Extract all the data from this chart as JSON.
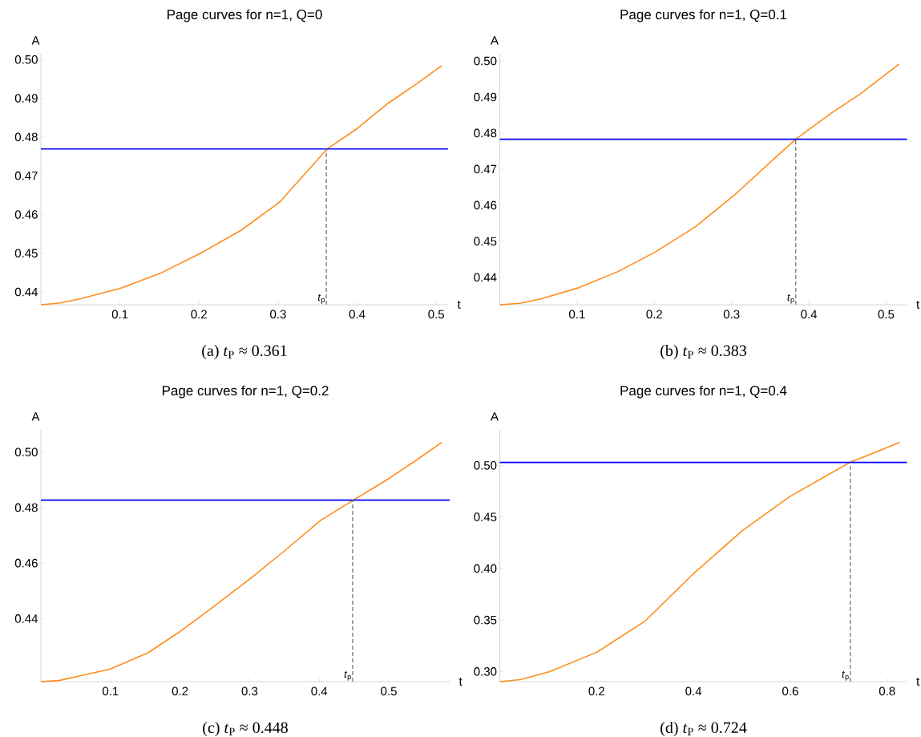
{
  "chart_data": [
    {
      "type": "line",
      "title": "Page curves for n=1, Q=0",
      "xlabel": "t",
      "ylabel": "A",
      "xlim": [
        0,
        0.515
      ],
      "ylim": [
        0.4367,
        0.5015
      ],
      "xticks": [
        0.1,
        0.2,
        0.3,
        0.4,
        0.5
      ],
      "yticks": [
        {
          "value": 0.44,
          "label": "0.44"
        },
        {
          "value": 0.45,
          "label": "0.45"
        },
        {
          "value": 0.46,
          "label": "0.46"
        },
        {
          "value": 0.47,
          "label": "0.47"
        },
        {
          "value": 0.48,
          "label": "0.48"
        },
        {
          "value": 0.49,
          "label": "0.49"
        },
        {
          "value": 0.5,
          "label": "0.50"
        }
      ],
      "x": [
        0,
        0.023,
        0.049,
        0.1,
        0.151,
        0.201,
        0.253,
        0.302,
        0.362,
        0.4,
        0.437,
        0.475,
        0.507
      ],
      "series": [
        {
          "color": "#ff8c1a",
          "values": [
            0.4367,
            0.4371,
            0.4382,
            0.4409,
            0.4448,
            0.4499,
            0.4559,
            0.4632,
            0.4769,
            0.4822,
            0.4884,
            0.4937,
            0.4984
          ]
        }
      ],
      "ref_lines": [
        {
          "axis": "y",
          "value": 0.4769,
          "color": "#0000ff"
        },
        {
          "axis": "x",
          "value": 0.361,
          "label": "*t*$_{p}$",
          "color": "#808080",
          "line_style": "dashed"
        }
      ],
      "annotations": [
        "(a) *t*$_{P}$ ≈ 0.361"
      ]
    },
    {
      "type": "line",
      "title": "Page curves for n=1, Q=0.1",
      "xlabel": "t",
      "ylabel": "A",
      "xlim": [
        0,
        0.527
      ],
      "ylim": [
        0.4324,
        0.502
      ],
      "xticks": [
        0.1,
        0.2,
        0.3,
        0.4,
        0.5
      ],
      "yticks": [
        {
          "value": 0.44,
          "label": "0.44"
        },
        {
          "value": 0.45,
          "label": "0.45"
        },
        {
          "value": 0.46,
          "label": "0.46"
        },
        {
          "value": 0.47,
          "label": "0.47"
        },
        {
          "value": 0.48,
          "label": "0.48"
        },
        {
          "value": 0.49,
          "label": "0.49"
        },
        {
          "value": 0.5,
          "label": "0.50"
        }
      ],
      "x": [
        0,
        0.026,
        0.053,
        0.102,
        0.153,
        0.201,
        0.253,
        0.303,
        0.352,
        0.383,
        0.429,
        0.467,
        0.517
      ],
      "series": [
        {
          "color": "#ff8c1a",
          "values": [
            0.4324,
            0.4328,
            0.434,
            0.4371,
            0.4416,
            0.447,
            0.454,
            0.4627,
            0.4723,
            0.4783,
            0.4855,
            0.4909,
            0.4992
          ]
        }
      ],
      "ref_lines": [
        {
          "axis": "y",
          "value": 0.4783,
          "color": "#0000ff"
        },
        {
          "axis": "x",
          "value": 0.383,
          "label": "*t*$_{p}$",
          "color": "#808080",
          "line_style": "dashed"
        }
      ],
      "annotations": [
        "(b) *t*$_{P}$ ≈ 0.383"
      ]
    },
    {
      "type": "line",
      "title": "Page curves for n=1, Q=0.2",
      "xlabel": "t",
      "ylabel": "A",
      "xlim": [
        0,
        0.5875
      ],
      "ylim": [
        0.4173,
        0.508
      ],
      "xticks": [
        0.1,
        0.2,
        0.3,
        0.4,
        0.5
      ],
      "yticks": [
        {
          "value": 0.44,
          "label": "0.44"
        },
        {
          "value": 0.46,
          "label": "0.46"
        },
        {
          "value": 0.48,
          "label": "0.48"
        },
        {
          "value": 0.5,
          "label": "0.50"
        }
      ],
      "x": [
        0,
        0.026,
        0.06,
        0.099,
        0.154,
        0.199,
        0.248,
        0.304,
        0.351,
        0.402,
        0.449,
        0.496,
        0.538,
        0.576
      ],
      "series": [
        {
          "color": "#ff8c1a",
          "values": [
            0.4173,
            0.4177,
            0.4196,
            0.4218,
            0.4277,
            0.4352,
            0.4443,
            0.455,
            0.4646,
            0.4754,
            0.4827,
            0.4898,
            0.4968,
            0.5035
          ]
        }
      ],
      "ref_lines": [
        {
          "axis": "y",
          "value": 0.4827,
          "color": "#0000ff"
        },
        {
          "axis": "x",
          "value": 0.448,
          "label": "*t*$_{p}$",
          "color": "#808080",
          "line_style": "dashed"
        }
      ],
      "annotations": [
        "(c) *t*$_{P}$ ≈ 0.448"
      ]
    },
    {
      "type": "line",
      "title": "Page curves for n=1, Q=0.4",
      "xlabel": "t",
      "ylabel": "A",
      "xlim": [
        0,
        0.841
      ],
      "ylim": [
        0.2902,
        0.5345
      ],
      "xticks": [
        0.2,
        0.4,
        0.6,
        0.8
      ],
      "yticks": [
        {
          "value": 0.3,
          "label": "0.30"
        },
        {
          "value": 0.35,
          "label": "0.35"
        },
        {
          "value": 0.4,
          "label": "0.40"
        },
        {
          "value": 0.45,
          "label": "0.45"
        },
        {
          "value": 0.5,
          "label": "0.50"
        }
      ],
      "x": [
        0,
        0.042,
        0.103,
        0.2,
        0.3,
        0.4,
        0.501,
        0.599,
        0.723,
        0.777,
        0.826
      ],
      "series": [
        {
          "color": "#ff8c1a",
          "values": [
            0.2902,
            0.2921,
            0.3,
            0.3187,
            0.3489,
            0.395,
            0.4367,
            0.4698,
            0.5029,
            0.5129,
            0.5224
          ]
        }
      ],
      "ref_lines": [
        {
          "axis": "y",
          "value": 0.5029,
          "color": "#0000ff"
        },
        {
          "axis": "x",
          "value": 0.724,
          "label": "*t*$_{p}$",
          "color": "#808080",
          "line_style": "dashed"
        }
      ],
      "annotations": [
        "(d) *t*$_{P}$ ≈ 0.724"
      ]
    }
  ]
}
